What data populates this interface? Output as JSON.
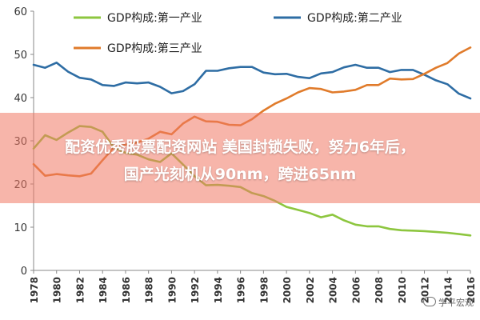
{
  "banner": {
    "line1": "配资优秀股票配资网站 美国封锁失败，努力6年后，",
    "line2": "国产光刻机从90nm，跨进65nm"
  },
  "watermark": "学平宏观",
  "chart_data": {
    "type": "line",
    "title": "",
    "xlabel": "",
    "ylabel": "",
    "ylim": [
      0,
      60
    ],
    "yticks": [
      0,
      10,
      20,
      30,
      40,
      50,
      60
    ],
    "xlim": [
      1978,
      2016
    ],
    "xticks": [
      1978,
      1980,
      1982,
      1984,
      1986,
      1988,
      1990,
      1992,
      1994,
      1996,
      1998,
      2000,
      2002,
      2004,
      2006,
      2008,
      2010,
      2012,
      2014,
      2016
    ],
    "grid": false,
    "legend_position": "top",
    "series": [
      {
        "name": "GDP构成:第一产业",
        "color": "#8dc63f",
        "points": [
          [
            1978,
            28.2
          ],
          [
            1979,
            31.3
          ],
          [
            1980,
            30.2
          ],
          [
            1981,
            31.9
          ],
          [
            1982,
            33.4
          ],
          [
            1983,
            33.2
          ],
          [
            1984,
            32.1
          ],
          [
            1985,
            28.4
          ],
          [
            1986,
            27.2
          ],
          [
            1987,
            26.8
          ],
          [
            1988,
            25.7
          ],
          [
            1989,
            25.1
          ],
          [
            1990,
            27.1
          ],
          [
            1991,
            24.5
          ],
          [
            1992,
            21.8
          ],
          [
            1993,
            19.7
          ],
          [
            1994,
            19.8
          ],
          [
            1995,
            19.6
          ],
          [
            1996,
            19.3
          ],
          [
            1997,
            17.9
          ],
          [
            1998,
            17.2
          ],
          [
            1999,
            16.1
          ],
          [
            2000,
            14.7
          ],
          [
            2001,
            14.0
          ],
          [
            2002,
            13.3
          ],
          [
            2003,
            12.3
          ],
          [
            2004,
            12.9
          ],
          [
            2005,
            11.6
          ],
          [
            2006,
            10.6
          ],
          [
            2007,
            10.2
          ],
          [
            2008,
            10.2
          ],
          [
            2009,
            9.6
          ],
          [
            2010,
            9.3
          ],
          [
            2011,
            9.2
          ],
          [
            2012,
            9.1
          ],
          [
            2013,
            8.9
          ],
          [
            2014,
            8.7
          ],
          [
            2015,
            8.4
          ],
          [
            2016,
            8.1
          ]
        ]
      },
      {
        "name": "GDP构成:第二产业",
        "color": "#2e6da4",
        "points": [
          [
            1978,
            47.6
          ],
          [
            1979,
            46.9
          ],
          [
            1980,
            48.1
          ],
          [
            1981,
            46.0
          ],
          [
            1982,
            44.6
          ],
          [
            1983,
            44.2
          ],
          [
            1984,
            42.9
          ],
          [
            1985,
            42.7
          ],
          [
            1986,
            43.5
          ],
          [
            1987,
            43.3
          ],
          [
            1988,
            43.5
          ],
          [
            1989,
            42.5
          ],
          [
            1990,
            41.0
          ],
          [
            1991,
            41.5
          ],
          [
            1992,
            43.1
          ],
          [
            1993,
            46.2
          ],
          [
            1994,
            46.2
          ],
          [
            1995,
            46.8
          ],
          [
            1996,
            47.1
          ],
          [
            1997,
            47.1
          ],
          [
            1998,
            45.8
          ],
          [
            1999,
            45.4
          ],
          [
            2000,
            45.5
          ],
          [
            2001,
            44.8
          ],
          [
            2002,
            44.5
          ],
          [
            2003,
            45.6
          ],
          [
            2004,
            45.9
          ],
          [
            2005,
            47.0
          ],
          [
            2006,
            47.6
          ],
          [
            2007,
            46.9
          ],
          [
            2008,
            46.9
          ],
          [
            2009,
            45.9
          ],
          [
            2010,
            46.4
          ],
          [
            2011,
            46.4
          ],
          [
            2012,
            45.3
          ],
          [
            2013,
            44.0
          ],
          [
            2014,
            43.1
          ],
          [
            2015,
            40.9
          ],
          [
            2016,
            39.8
          ]
        ]
      },
      {
        "name": "GDP构成:第三产业",
        "color": "#e07b2b",
        "points": [
          [
            1978,
            24.6
          ],
          [
            1979,
            21.9
          ],
          [
            1980,
            22.3
          ],
          [
            1981,
            22.0
          ],
          [
            1982,
            21.8
          ],
          [
            1983,
            22.4
          ],
          [
            1984,
            25.5
          ],
          [
            1985,
            28.5
          ],
          [
            1986,
            29.1
          ],
          [
            1987,
            29.6
          ],
          [
            1988,
            30.5
          ],
          [
            1989,
            32.1
          ],
          [
            1990,
            31.5
          ],
          [
            1991,
            34.0
          ],
          [
            1992,
            35.6
          ],
          [
            1993,
            34.5
          ],
          [
            1994,
            34.4
          ],
          [
            1995,
            33.7
          ],
          [
            1996,
            33.6
          ],
          [
            1997,
            35.0
          ],
          [
            1998,
            37.0
          ],
          [
            1999,
            38.6
          ],
          [
            2000,
            39.8
          ],
          [
            2001,
            41.2
          ],
          [
            2002,
            42.2
          ],
          [
            2003,
            42.0
          ],
          [
            2004,
            41.2
          ],
          [
            2005,
            41.4
          ],
          [
            2006,
            41.8
          ],
          [
            2007,
            42.9
          ],
          [
            2008,
            42.9
          ],
          [
            2009,
            44.4
          ],
          [
            2010,
            44.2
          ],
          [
            2011,
            44.3
          ],
          [
            2012,
            45.5
          ],
          [
            2013,
            46.9
          ],
          [
            2014,
            48.0
          ],
          [
            2015,
            50.2
          ],
          [
            2016,
            51.6
          ]
        ]
      }
    ]
  }
}
